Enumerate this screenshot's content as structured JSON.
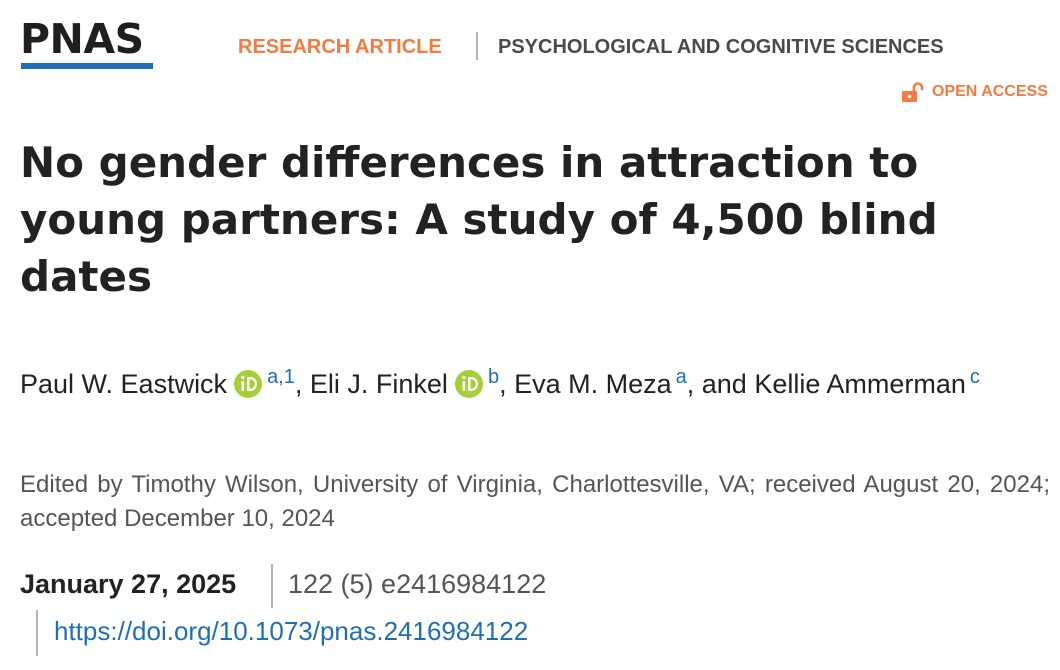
{
  "header": {
    "logo_text": "PNAS",
    "article_type": "RESEARCH ARTICLE",
    "subject": "PSYCHOLOGICAL AND COGNITIVE SCIENCES",
    "open_access_label": "OPEN ACCESS"
  },
  "article": {
    "title": "No gender differences in attraction to young partners: A study of 4,500 blind dates",
    "authors": [
      {
        "name": "Paul W. Eastwick",
        "orcid": true,
        "affiliations": "a,1"
      },
      {
        "name": "Eli J. Finkel",
        "orcid": true,
        "affiliations": "b"
      },
      {
        "name": "Eva M. Meza",
        "orcid": false,
        "affiliations": "a"
      },
      {
        "name": "Kellie Ammerman",
        "orcid": false,
        "affiliations": "c"
      }
    ],
    "separators": [
      ", ",
      ", ",
      ", and "
    ],
    "edited_by": "Edited by Timothy Wilson, University of Virginia, Charlottesville, VA; received August 20, 2024; accepted December 10, 2024",
    "publication_date": "January 27, 2025",
    "citation": "122 (5) e2416984122",
    "doi": "https://doi.org/10.1073/pnas.2416984122"
  },
  "colors": {
    "accent_orange": "#f47a40",
    "link_blue": "#1f6fb5",
    "orcid_green": "#a6ce39"
  },
  "icons": {
    "open_access": "open-lock-icon",
    "orcid": "orcid-icon"
  }
}
